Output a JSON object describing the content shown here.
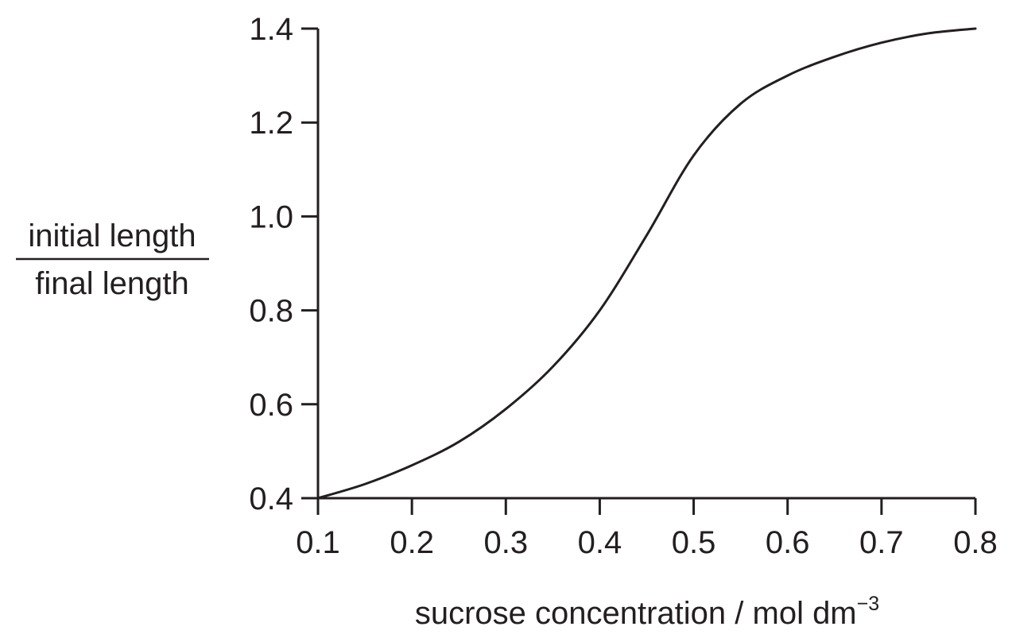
{
  "chart_data": {
    "type": "line",
    "xlabel": "sucrose concentration / mol dm",
    "xlabel_superscript": "−3",
    "ylabel_numerator": "initial length",
    "ylabel_denominator": "final length",
    "xlim": [
      0.1,
      0.8
    ],
    "ylim": [
      0.4,
      1.4
    ],
    "x_ticks": [
      0.1,
      0.2,
      0.3,
      0.4,
      0.5,
      0.6,
      0.7,
      0.8
    ],
    "x_tick_labels": [
      "0.1",
      "0.2",
      "0.3",
      "0.4",
      "0.5",
      "0.6",
      "0.7",
      "0.8"
    ],
    "y_ticks": [
      0.4,
      0.6,
      0.8,
      1.0,
      1.2,
      1.4
    ],
    "y_tick_labels": [
      "0.4",
      "0.6",
      "0.8",
      "1.0",
      "1.2",
      "1.4"
    ],
    "grid": false,
    "series": [
      {
        "color": "#231f20",
        "x": [
          0.1,
          0.15,
          0.2,
          0.25,
          0.3,
          0.35,
          0.4,
          0.45,
          0.5,
          0.55,
          0.6,
          0.65,
          0.7,
          0.75,
          0.8
        ],
        "y": [
          0.4,
          0.43,
          0.47,
          0.52,
          0.59,
          0.68,
          0.8,
          0.96,
          1.13,
          1.24,
          1.3,
          1.34,
          1.37,
          1.39,
          1.4
        ]
      }
    ]
  }
}
